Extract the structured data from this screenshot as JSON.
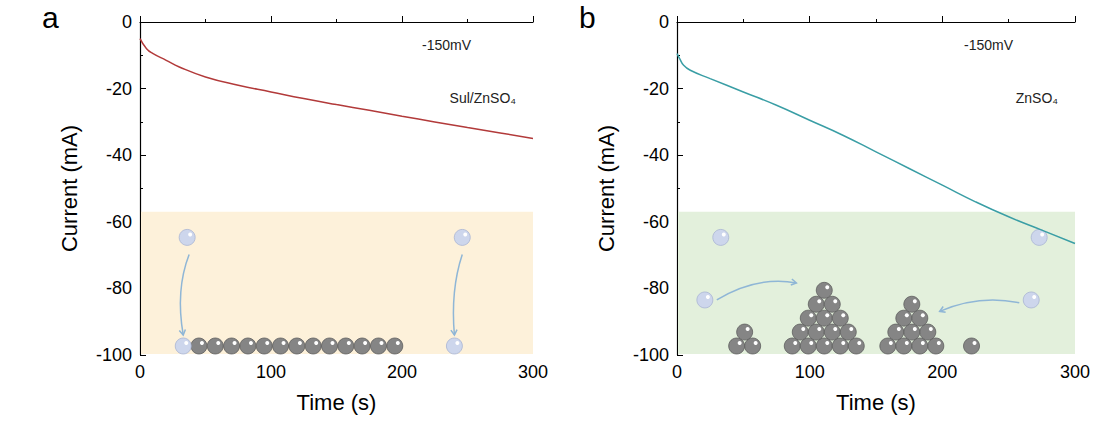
{
  "chart_data": [
    {
      "type": "line",
      "title": "a",
      "annotations": [
        "-150mV"
      ],
      "xlabel": "Time (s)",
      "ylabel": "Current (mA)",
      "x": [
        0,
        5,
        10,
        20,
        30,
        50,
        75,
        100,
        125,
        150,
        175,
        200,
        225,
        250,
        275,
        300
      ],
      "series": [
        {
          "name": "Sul/ZnSO₄",
          "color": "#b23a3a",
          "values": [
            -5,
            -8,
            -9.5,
            -11.5,
            -13.5,
            -16.5,
            -19,
            -21,
            -23,
            -24.8,
            -26.5,
            -28.3,
            -30,
            -31.7,
            -33.3,
            -35
          ]
        }
      ],
      "xlim": [
        0,
        300
      ],
      "xticks": [
        0,
        100,
        200,
        300
      ],
      "ylim": [
        -100,
        0
      ],
      "yticks": [
        -100,
        -80,
        -60,
        -40,
        -20,
        0
      ],
      "grid": false,
      "legend": "upper right"
    },
    {
      "type": "line",
      "title": "b",
      "annotations": [
        "-150mV"
      ],
      "xlabel": "Time (s)",
      "ylabel": "Current (mA)",
      "x": [
        0,
        2,
        5,
        10,
        25,
        50,
        75,
        100,
        125,
        150,
        175,
        200,
        225,
        250,
        275,
        300
      ],
      "series": [
        {
          "name": "ZnSO₄",
          "color": "#3a9ea5",
          "values": [
            -9.5,
            -11,
            -13,
            -14.5,
            -17,
            -21,
            -25,
            -29.5,
            -34,
            -39,
            -44,
            -49,
            -54,
            -58.5,
            -62.5,
            -66.5
          ]
        }
      ],
      "xlim": [
        0,
        300
      ],
      "xticks": [
        0,
        100,
        200,
        300
      ],
      "ylim": [
        -100,
        0
      ],
      "yticks": [
        -100,
        -80,
        -60,
        -40,
        -20,
        0
      ],
      "grid": false,
      "legend": "upper right"
    }
  ]
}
